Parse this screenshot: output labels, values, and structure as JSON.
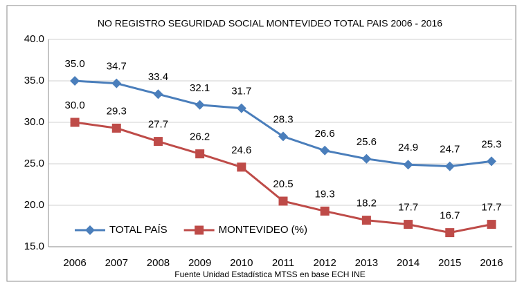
{
  "chart_data": {
    "type": "line",
    "title": "NO REGISTRO SEGURIDAD SOCIAL MONTEVIDEO TOTAL PAIS 2006 - 2016",
    "source": "Fuente Unidad Estadística MTSS en base ECH INE",
    "categories": [
      "2006",
      "2007",
      "2008",
      "2009",
      "2010",
      "2011",
      "2012",
      "2013",
      "2014",
      "2015",
      "2016"
    ],
    "series": [
      {
        "name": "TOTAL PAÍS",
        "color": "#4a7ebb",
        "marker": "diamond",
        "values": [
          35.0,
          34.7,
          33.4,
          32.1,
          31.7,
          28.3,
          26.6,
          25.6,
          24.9,
          24.7,
          25.3
        ],
        "value_labels": [
          "35.0",
          "34.7",
          "33.4",
          "32.1",
          "31.7",
          "28.3",
          "26.6",
          "25.6",
          "24.9",
          "24.7",
          "25.3"
        ]
      },
      {
        "name": "MONTEVIDEO (%)",
        "color": "#be4b48",
        "marker": "square",
        "values": [
          30.0,
          29.3,
          27.7,
          26.2,
          24.6,
          20.5,
          19.3,
          18.2,
          17.7,
          16.7,
          17.7
        ],
        "value_labels": [
          "30.0",
          "29.3",
          "27.7",
          "26.2",
          "24.6",
          "20.5",
          "19.3",
          "18.2",
          "17.7",
          "16.7",
          "17.7"
        ]
      }
    ],
    "ylim": [
      15,
      40
    ],
    "yticks": [
      {
        "value": 15,
        "label": "15.0"
      },
      {
        "value": 20,
        "label": "20.0"
      },
      {
        "value": 25,
        "label": "25.0"
      },
      {
        "value": 30,
        "label": "30.0"
      },
      {
        "value": 35,
        "label": "35.0"
      },
      {
        "value": 40,
        "label": "40.0"
      }
    ],
    "grid": true,
    "legend": "lower left"
  }
}
